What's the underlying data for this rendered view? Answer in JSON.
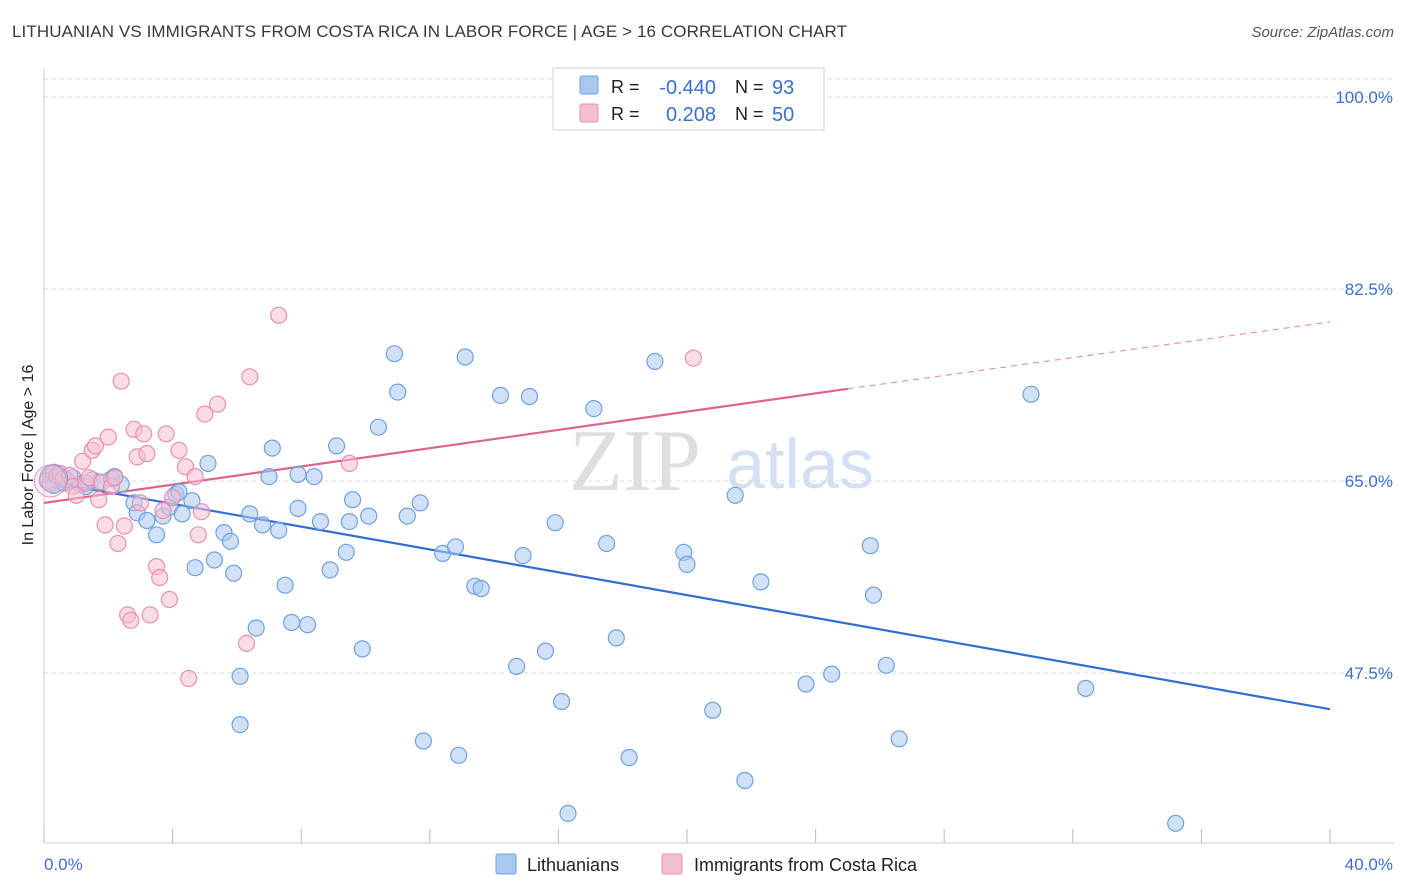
{
  "header": {
    "title": "LITHUANIAN VS IMMIGRANTS FROM COSTA RICA IN LABOR FORCE | AGE > 16 CORRELATION CHART",
    "source": "Source: ZipAtlas.com"
  },
  "watermark": {
    "zip": "ZIP",
    "atlas": "atlas"
  },
  "colors": {
    "blue": "#6fa0e0",
    "blue_fill": "#a9c8f0",
    "blue_line": "#2f6fd1",
    "pink": "#ea8fb0",
    "pink_fill": "#f5bfd2",
    "pink_line": "#e06090",
    "grid": "#d8d8d8",
    "tick_text": "#3a6fd0"
  },
  "legend": {
    "rows": [
      {
        "r_label": "R =",
        "r_value": "-0.440",
        "n_label": "N =",
        "n_value": "93"
      },
      {
        "r_label": "R =",
        "r_value": "0.208",
        "n_label": "N =",
        "n_value": "50"
      }
    ]
  },
  "chart_data": {
    "type": "scatter",
    "title": "LITHUANIAN VS IMMIGRANTS FROM COSTA RICA IN LABOR FORCE | AGE > 16 CORRELATION CHART",
    "xlabel": "",
    "ylabel": "In Labor Force | Age > 16",
    "xlim": [
      0,
      40
    ],
    "ylim": [
      31,
      101
    ],
    "x_tick_labels": [
      "0.0%",
      "40.0%"
    ],
    "y_ticks": [
      47.5,
      65.0,
      82.5,
      100.0
    ],
    "y_tick_labels": [
      "47.5%",
      "65.0%",
      "82.5%",
      "100.0%"
    ],
    "series": [
      {
        "name": "Lithuanians",
        "r": -0.44,
        "n": 93,
        "trend": {
          "x0": 0,
          "y0": 65.0,
          "x1": 40,
          "y1": 44.2
        },
        "points": [
          [
            0.2,
            65.6
          ],
          [
            0.3,
            64.6
          ],
          [
            0.4,
            65.1
          ],
          [
            0.5,
            65.3
          ],
          [
            0.6,
            64.8
          ],
          [
            0.7,
            65.1
          ],
          [
            0.9,
            65.3
          ],
          [
            1.1,
            64.7
          ],
          [
            1.3,
            64.5
          ],
          [
            1.5,
            65.1
          ],
          [
            1.7,
            64.9
          ],
          [
            2.1,
            65.2
          ],
          [
            2.4,
            64.7
          ],
          [
            2.2,
            65.4
          ],
          [
            2.8,
            63.0
          ],
          [
            2.9,
            62.1
          ],
          [
            3.2,
            61.4
          ],
          [
            3.5,
            60.1
          ],
          [
            3.7,
            61.8
          ],
          [
            3.9,
            62.6
          ],
          [
            4.1,
            63.8
          ],
          [
            4.3,
            62.0
          ],
          [
            4.2,
            64.0
          ],
          [
            4.6,
            63.2
          ],
          [
            4.7,
            57.1
          ],
          [
            5.1,
            66.6
          ],
          [
            5.3,
            57.8
          ],
          [
            5.6,
            60.3
          ],
          [
            5.8,
            59.5
          ],
          [
            5.9,
            56.6
          ],
          [
            6.1,
            42.8
          ],
          [
            6.1,
            47.2
          ],
          [
            6.4,
            62.0
          ],
          [
            6.6,
            51.6
          ],
          [
            6.8,
            61.0
          ],
          [
            7.0,
            65.4
          ],
          [
            7.1,
            68.0
          ],
          [
            7.3,
            60.5
          ],
          [
            7.5,
            55.5
          ],
          [
            7.7,
            52.1
          ],
          [
            7.9,
            62.5
          ],
          [
            7.9,
            65.6
          ],
          [
            8.2,
            51.9
          ],
          [
            8.4,
            65.4
          ],
          [
            8.6,
            61.3
          ],
          [
            8.9,
            56.9
          ],
          [
            9.1,
            68.2
          ],
          [
            9.4,
            58.5
          ],
          [
            9.5,
            61.3
          ],
          [
            9.6,
            63.3
          ],
          [
            9.9,
            49.7
          ],
          [
            10.1,
            61.8
          ],
          [
            10.4,
            69.9
          ],
          [
            10.9,
            76.6
          ],
          [
            11.0,
            73.1
          ],
          [
            11.3,
            61.8
          ],
          [
            11.7,
            63.0
          ],
          [
            11.8,
            41.3
          ],
          [
            12.4,
            58.4
          ],
          [
            12.8,
            59.0
          ],
          [
            12.9,
            40.0
          ],
          [
            13.1,
            76.3
          ],
          [
            13.4,
            55.4
          ],
          [
            13.6,
            55.2
          ],
          [
            14.2,
            72.8
          ],
          [
            14.7,
            48.1
          ],
          [
            14.9,
            58.2
          ],
          [
            15.1,
            72.7
          ],
          [
            15.6,
            49.5
          ],
          [
            15.9,
            61.2
          ],
          [
            16.1,
            44.9
          ],
          [
            16.3,
            34.7
          ],
          [
            17.1,
            71.6
          ],
          [
            17.5,
            59.3
          ],
          [
            17.8,
            50.7
          ],
          [
            18.2,
            39.8
          ],
          [
            19.0,
            75.9
          ],
          [
            19.9,
            58.5
          ],
          [
            20.0,
            57.4
          ],
          [
            20.8,
            44.1
          ],
          [
            21.5,
            63.7
          ],
          [
            21.8,
            37.7
          ],
          [
            22.3,
            55.8
          ],
          [
            23.7,
            46.5
          ],
          [
            24.5,
            47.4
          ],
          [
            25.7,
            59.1
          ],
          [
            25.8,
            54.6
          ],
          [
            26.2,
            48.2
          ],
          [
            26.6,
            41.5
          ],
          [
            30.7,
            72.9
          ],
          [
            32.4,
            46.1
          ],
          [
            35.2,
            33.8
          ]
        ]
      },
      {
        "name": "Immigrants from Costa Rica",
        "r": 0.208,
        "n": 50,
        "trend": {
          "x0": 0,
          "y0": 63.0,
          "x1": 25,
          "y1": 73.4,
          "dash_x1": 40,
          "dash_y1": 79.5
        },
        "points": [
          [
            0.1,
            65.0
          ],
          [
            0.2,
            64.8
          ],
          [
            0.3,
            65.8
          ],
          [
            0.4,
            65.5
          ],
          [
            0.5,
            65.7
          ],
          [
            0.6,
            65.2
          ],
          [
            0.8,
            65.5
          ],
          [
            0.9,
            64.5
          ],
          [
            1.0,
            63.7
          ],
          [
            1.2,
            66.8
          ],
          [
            1.3,
            64.8
          ],
          [
            1.4,
            65.3
          ],
          [
            1.5,
            67.8
          ],
          [
            1.6,
            68.2
          ],
          [
            1.7,
            63.3
          ],
          [
            1.8,
            64.9
          ],
          [
            1.9,
            61.0
          ],
          [
            2.0,
            69.0
          ],
          [
            2.1,
            64.5
          ],
          [
            2.2,
            65.3
          ],
          [
            2.3,
            59.3
          ],
          [
            2.4,
            74.1
          ],
          [
            2.5,
            60.9
          ],
          [
            2.6,
            52.8
          ],
          [
            2.7,
            52.3
          ],
          [
            2.8,
            69.7
          ],
          [
            2.9,
            67.2
          ],
          [
            3.0,
            63.0
          ],
          [
            3.1,
            69.3
          ],
          [
            3.2,
            67.5
          ],
          [
            3.3,
            52.8
          ],
          [
            3.5,
            57.2
          ],
          [
            3.6,
            56.2
          ],
          [
            3.7,
            62.3
          ],
          [
            3.8,
            69.3
          ],
          [
            3.9,
            54.2
          ],
          [
            4.0,
            63.5
          ],
          [
            4.2,
            67.8
          ],
          [
            4.4,
            66.3
          ],
          [
            4.5,
            47.0
          ],
          [
            4.7,
            65.4
          ],
          [
            4.8,
            60.1
          ],
          [
            4.9,
            62.2
          ],
          [
            5.0,
            71.1
          ],
          [
            5.4,
            72.0
          ],
          [
            6.3,
            50.2
          ],
          [
            6.4,
            74.5
          ],
          [
            7.3,
            80.1
          ],
          [
            9.5,
            66.6
          ],
          [
            20.2,
            76.2
          ]
        ]
      }
    ]
  },
  "bottom_legend": {
    "items": [
      {
        "label": "Lithuanians"
      },
      {
        "label": "Immigrants from Costa Rica"
      }
    ]
  }
}
